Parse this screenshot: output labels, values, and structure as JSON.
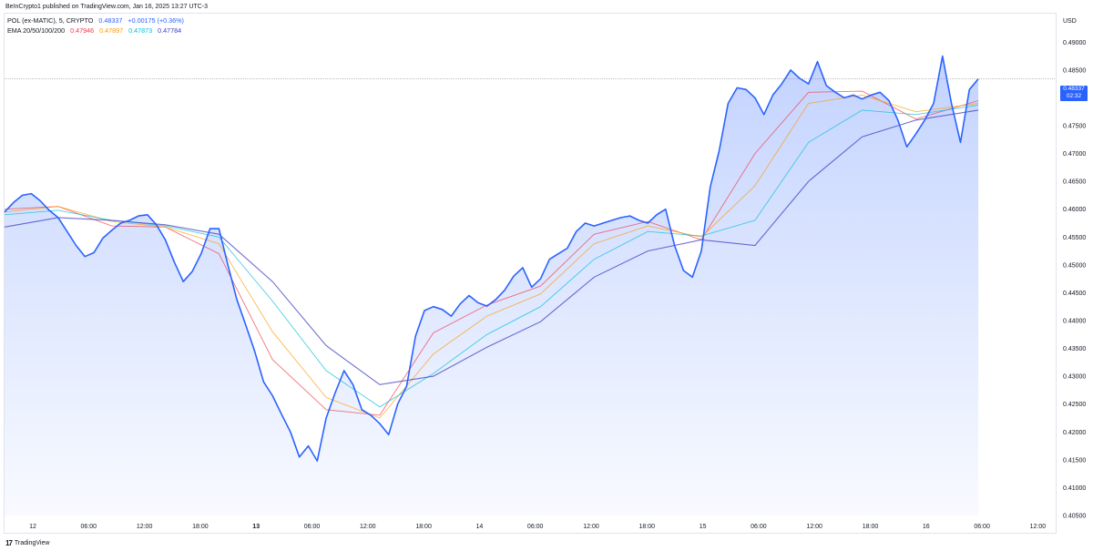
{
  "header": {
    "publish_line": "BeInCrypto1 published on TradingView.com, Jan 16, 2025 13:27 UTC-3"
  },
  "legend": {
    "symbol": "POL (ex-MATIC), 5, CRYPTO",
    "price": "0.48337",
    "change": "+0.00175 (+0.36%)",
    "ema_label": "EMA 20/50/100/200",
    "ema_values": [
      "0.47946",
      "0.47897",
      "0.47873",
      "0.47784"
    ]
  },
  "currency": "USD",
  "price_tag": {
    "value": "0.48337",
    "countdown": "02:32"
  },
  "brand": {
    "logo": "17",
    "name": "TradingView"
  },
  "colors": {
    "price": "#2962ff",
    "ema20": "#f23645",
    "ema50": "#ff9800",
    "ema100": "#00bcd4",
    "ema200": "#3d3dbf",
    "price_up": "#2962ff"
  },
  "chart_data": {
    "type": "area",
    "title": "POL (ex-MATIC), 5, CRYPTO",
    "xlabel": "",
    "ylabel": "USD",
    "ylim": [
      0.405,
      0.4925
    ],
    "grid": false,
    "x_ticks": [
      "12",
      "06:00",
      "12:00",
      "18:00",
      "13",
      "06:00",
      "12:00",
      "18:00",
      "14",
      "06:00",
      "12:00",
      "18:00",
      "15",
      "06:00",
      "12:00",
      "18:00",
      "16",
      "06:00",
      "12:00"
    ],
    "x_ticks_bold": [
      false,
      false,
      false,
      false,
      true,
      false,
      false,
      false,
      false,
      false,
      false,
      false,
      false,
      false,
      false,
      false,
      false,
      false,
      false
    ],
    "y_ticks": [
      0.49,
      0.485,
      0.48,
      0.475,
      0.47,
      0.465,
      0.46,
      0.455,
      0.45,
      0.445,
      0.44,
      0.435,
      0.43,
      0.425,
      0.42,
      0.415,
      0.41,
      0.405
    ],
    "hours_per_tick": 6,
    "series": [
      {
        "name": "POL",
        "x": [
          0,
          1,
          2,
          3,
          4,
          5,
          6,
          7,
          8,
          9,
          10,
          11,
          12,
          13,
          14,
          15,
          16,
          17,
          18,
          19,
          20,
          21,
          22,
          23,
          24,
          25,
          26,
          27,
          28,
          29,
          30,
          31,
          32,
          33,
          34,
          35,
          36,
          37,
          38,
          39,
          40,
          41,
          42,
          43,
          44,
          45,
          46,
          47,
          48,
          49,
          50,
          51,
          52,
          53,
          54,
          55,
          56,
          57,
          58,
          59,
          60,
          61,
          62,
          63,
          64,
          65,
          66,
          67,
          68,
          69,
          70,
          71,
          72,
          73,
          74,
          75,
          76,
          77,
          78,
          79,
          80,
          81,
          82,
          83,
          84,
          85,
          86,
          87,
          88,
          89,
          90,
          91,
          92,
          93,
          94,
          95,
          96,
          97,
          98,
          99,
          100,
          101,
          102,
          103,
          104,
          105,
          106,
          107,
          108,
          109
        ],
        "values": [
          0.4595,
          0.4612,
          0.4625,
          0.4628,
          0.4615,
          0.4598,
          0.4585,
          0.456,
          0.4535,
          0.4515,
          0.4522,
          0.4548,
          0.4562,
          0.4575,
          0.458,
          0.4588,
          0.459,
          0.4572,
          0.4545,
          0.4505,
          0.447,
          0.4488,
          0.452,
          0.4565,
          0.4565,
          0.45,
          0.4438,
          0.4392,
          0.4345,
          0.429,
          0.4265,
          0.4232,
          0.42,
          0.4155,
          0.4175,
          0.4148,
          0.4225,
          0.427,
          0.431,
          0.4285,
          0.424,
          0.423,
          0.4215,
          0.4195,
          0.425,
          0.4282,
          0.4372,
          0.4418,
          0.4425,
          0.442,
          0.4408,
          0.443,
          0.4445,
          0.4432,
          0.4426,
          0.4438,
          0.4455,
          0.448,
          0.4495,
          0.446,
          0.4475,
          0.451,
          0.452,
          0.453,
          0.456,
          0.4575,
          0.457,
          0.4575,
          0.458,
          0.4585,
          0.4588,
          0.458,
          0.4575,
          0.459,
          0.46,
          0.4535,
          0.449,
          0.4478,
          0.4525,
          0.464,
          0.4705,
          0.479,
          0.4818,
          0.4815,
          0.48,
          0.477,
          0.4805,
          0.4825,
          0.485,
          0.4835,
          0.4825,
          0.4865,
          0.4822,
          0.481,
          0.48,
          0.4805,
          0.4798,
          0.4805,
          0.481,
          0.4795,
          0.476,
          0.4712,
          0.4735,
          0.476,
          0.479,
          0.4875,
          0.479,
          0.472,
          0.4815,
          0.4834
        ]
      },
      {
        "name": "EMA 20",
        "x": [
          0,
          6,
          12,
          18,
          24,
          30,
          36,
          42,
          48,
          54,
          60,
          66,
          72,
          78,
          84,
          90,
          96,
          102,
          109
        ],
        "values": [
          0.46,
          0.4605,
          0.457,
          0.4568,
          0.452,
          0.433,
          0.424,
          0.423,
          0.4378,
          0.4428,
          0.4462,
          0.4555,
          0.4578,
          0.4545,
          0.47,
          0.481,
          0.4812,
          0.4762,
          0.4795
        ]
      },
      {
        "name": "EMA 50",
        "x": [
          0,
          6,
          12,
          18,
          24,
          30,
          36,
          42,
          48,
          54,
          60,
          66,
          72,
          78,
          84,
          90,
          96,
          102,
          109
        ],
        "values": [
          0.4595,
          0.4605,
          0.4578,
          0.4568,
          0.4538,
          0.438,
          0.4262,
          0.4225,
          0.434,
          0.4408,
          0.4448,
          0.4538,
          0.457,
          0.455,
          0.4642,
          0.479,
          0.4805,
          0.4775,
          0.479
        ]
      },
      {
        "name": "EMA 100",
        "x": [
          0,
          6,
          12,
          18,
          24,
          30,
          36,
          42,
          48,
          54,
          60,
          66,
          72,
          78,
          84,
          90,
          96,
          102,
          109
        ],
        "values": [
          0.459,
          0.4598,
          0.458,
          0.457,
          0.455,
          0.4435,
          0.431,
          0.4245,
          0.4305,
          0.4375,
          0.4425,
          0.451,
          0.456,
          0.4552,
          0.458,
          0.472,
          0.4778,
          0.477,
          0.4787
        ]
      },
      {
        "name": "EMA 200",
        "x": [
          0,
          6,
          12,
          18,
          24,
          30,
          36,
          42,
          48,
          54,
          60,
          66,
          72,
          78,
          84,
          90,
          96,
          102,
          109
        ],
        "values": [
          0.4568,
          0.4585,
          0.458,
          0.4572,
          0.4555,
          0.447,
          0.4355,
          0.4285,
          0.43,
          0.4352,
          0.4398,
          0.4478,
          0.4525,
          0.4545,
          0.4535,
          0.465,
          0.473,
          0.476,
          0.4778
        ]
      }
    ]
  }
}
